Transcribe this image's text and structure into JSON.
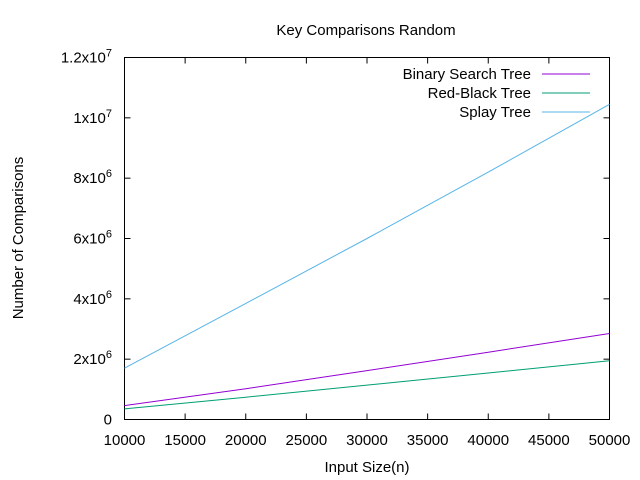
{
  "chart_data": {
    "type": "line",
    "title": "Key Comparisons Random",
    "xlabel": "Input Size(n)",
    "ylabel": "Number of Comparisons",
    "xlim": [
      10000,
      50000
    ],
    "ylim": [
      0,
      12000000
    ],
    "x_ticks": [
      {
        "value": 10000,
        "label": "10000"
      },
      {
        "value": 15000,
        "label": "15000"
      },
      {
        "value": 20000,
        "label": "20000"
      },
      {
        "value": 25000,
        "label": "25000"
      },
      {
        "value": 30000,
        "label": "30000"
      },
      {
        "value": 35000,
        "label": "35000"
      },
      {
        "value": 40000,
        "label": "40000"
      },
      {
        "value": 45000,
        "label": "45000"
      },
      {
        "value": 50000,
        "label": "50000"
      }
    ],
    "y_ticks": [
      {
        "value": 0,
        "mantissa": "0",
        "exp": ""
      },
      {
        "value": 2000000,
        "mantissa": "2x10",
        "exp": "6"
      },
      {
        "value": 4000000,
        "mantissa": "4x10",
        "exp": "6"
      },
      {
        "value": 6000000,
        "mantissa": "6x10",
        "exp": "6"
      },
      {
        "value": 8000000,
        "mantissa": "8x10",
        "exp": "6"
      },
      {
        "value": 10000000,
        "mantissa": "1x10",
        "exp": "7"
      },
      {
        "value": 12000000,
        "mantissa": "1.2x10",
        "exp": "7"
      }
    ],
    "grid": false,
    "legend_position": "top-right",
    "x": [
      10000,
      20000,
      30000,
      40000,
      50000
    ],
    "series": [
      {
        "name": "Binary Search Tree",
        "color": "#9400d3",
        "values": [
          460000,
          1020000,
          1620000,
          2230000,
          2850000
        ]
      },
      {
        "name": "Red-Black Tree",
        "color": "#009e73",
        "values": [
          350000,
          740000,
          1140000,
          1540000,
          1950000
        ]
      },
      {
        "name": "Splay Tree",
        "color": "#56b4e9",
        "values": [
          1700000,
          3850000,
          6000000,
          8200000,
          10450000
        ]
      }
    ]
  }
}
